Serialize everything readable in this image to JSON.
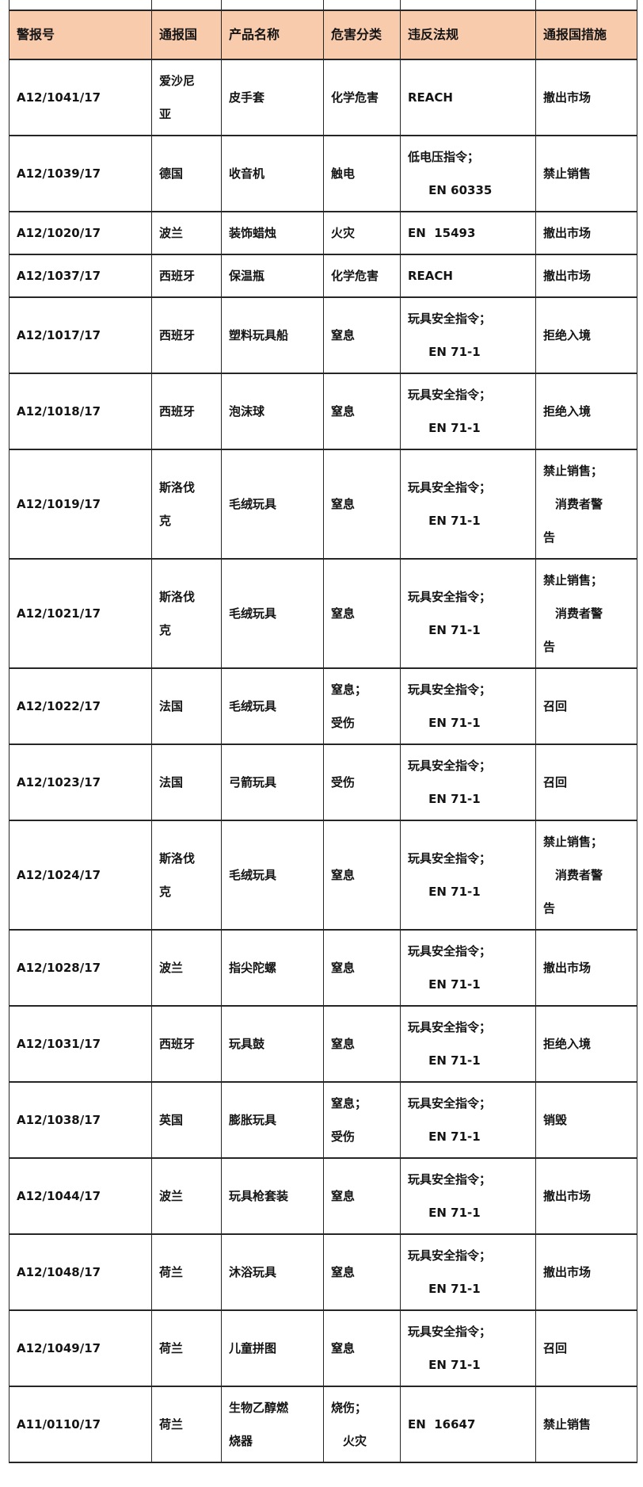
{
  "colors": {
    "header_bg": "#F8CBAD",
    "border": "#262626",
    "text": "#141414",
    "page_bg": "#FFFFFF"
  },
  "table": {
    "columns": [
      {
        "key": "alert_no",
        "label": "警报号"
      },
      {
        "key": "country",
        "label": "通报国"
      },
      {
        "key": "product",
        "label": "产品名称"
      },
      {
        "key": "hazard",
        "label": "危害分类"
      },
      {
        "key": "regulation",
        "label": "违反法规"
      },
      {
        "key": "measure",
        "label": "通报国措施"
      }
    ],
    "rows": [
      {
        "alert_no": [
          "A12/1041/17"
        ],
        "country": [
          "爱沙尼",
          "亚"
        ],
        "product": [
          "皮手套"
        ],
        "hazard": [
          "化学危害"
        ],
        "regulation": [
          "REACH"
        ],
        "measure": [
          "撤出市场"
        ]
      },
      {
        "alert_no": [
          "A12/1039/17"
        ],
        "country": [
          "德国"
        ],
        "product": [
          "收音机"
        ],
        "hazard": [
          "触电"
        ],
        "regulation": [
          "低电压指令；",
          "     EN 60335"
        ],
        "measure": [
          "禁止销售"
        ]
      },
      {
        "alert_no": [
          "A12/1020/17"
        ],
        "country": [
          "波兰"
        ],
        "product": [
          "装饰蜡烛"
        ],
        "hazard": [
          "火灾"
        ],
        "regulation": [
          "EN  15493"
        ],
        "measure": [
          "撤出市场"
        ]
      },
      {
        "alert_no": [
          "A12/1037/17"
        ],
        "country": [
          "西班牙"
        ],
        "product": [
          "保温瓶"
        ],
        "hazard": [
          "化学危害"
        ],
        "regulation": [
          "REACH"
        ],
        "measure": [
          "撤出市场"
        ]
      },
      {
        "alert_no": [
          "A12/1017/17"
        ],
        "country": [
          "西班牙"
        ],
        "product": [
          "塑料玩具船"
        ],
        "hazard": [
          "窒息"
        ],
        "regulation": [
          "玩具安全指令；",
          "     EN 71-1"
        ],
        "measure": [
          "拒绝入境"
        ]
      },
      {
        "alert_no": [
          "A12/1018/17"
        ],
        "country": [
          "西班牙"
        ],
        "product": [
          "泡沫球"
        ],
        "hazard": [
          "窒息"
        ],
        "regulation": [
          "玩具安全指令；",
          "     EN 71-1"
        ],
        "measure": [
          "拒绝入境"
        ]
      },
      {
        "alert_no": [
          "A12/1019/17"
        ],
        "country": [
          "斯洛伐",
          "克"
        ],
        "product": [
          "毛绒玩具"
        ],
        "hazard": [
          "窒息"
        ],
        "regulation": [
          "玩具安全指令；",
          "     EN 71-1"
        ],
        "measure": [
          "禁止销售；",
          "　消费者警",
          "告"
        ]
      },
      {
        "alert_no": [
          "A12/1021/17"
        ],
        "country": [
          "斯洛伐",
          "克"
        ],
        "product": [
          "毛绒玩具"
        ],
        "hazard": [
          "窒息"
        ],
        "regulation": [
          "玩具安全指令；",
          "     EN 71-1"
        ],
        "measure": [
          "禁止销售；",
          "　消费者警",
          "告"
        ]
      },
      {
        "alert_no": [
          "A12/1022/17"
        ],
        "country": [
          "法国"
        ],
        "product": [
          "毛绒玩具"
        ],
        "hazard": [
          "窒息；",
          "受伤"
        ],
        "regulation": [
          "玩具安全指令；",
          "     EN 71-1"
        ],
        "measure": [
          "召回"
        ]
      },
      {
        "alert_no": [
          "A12/1023/17"
        ],
        "country": [
          "法国"
        ],
        "product": [
          "弓箭玩具"
        ],
        "hazard": [
          "受伤"
        ],
        "regulation": [
          "玩具安全指令；",
          "     EN 71-1"
        ],
        "measure": [
          "召回"
        ]
      },
      {
        "alert_no": [
          "A12/1024/17"
        ],
        "country": [
          "斯洛伐",
          "克"
        ],
        "product": [
          "毛绒玩具"
        ],
        "hazard": [
          "窒息"
        ],
        "regulation": [
          "玩具安全指令；",
          "     EN 71-1"
        ],
        "measure": [
          "禁止销售；",
          "　消费者警",
          "告"
        ]
      },
      {
        "alert_no": [
          "A12/1028/17"
        ],
        "country": [
          "波兰"
        ],
        "product": [
          "指尖陀螺"
        ],
        "hazard": [
          "窒息"
        ],
        "regulation": [
          "玩具安全指令；",
          "     EN 71-1"
        ],
        "measure": [
          "撤出市场"
        ]
      },
      {
        "alert_no": [
          "A12/1031/17"
        ],
        "country": [
          "西班牙"
        ],
        "product": [
          "玩具鼓"
        ],
        "hazard": [
          "窒息"
        ],
        "regulation": [
          "玩具安全指令；",
          "     EN 71-1"
        ],
        "measure": [
          "拒绝入境"
        ]
      },
      {
        "alert_no": [
          "A12/1038/17"
        ],
        "country": [
          "英国"
        ],
        "product": [
          "膨胀玩具"
        ],
        "hazard": [
          "窒息；",
          "受伤"
        ],
        "regulation": [
          "玩具安全指令；",
          "     EN 71-1"
        ],
        "measure": [
          "销毁"
        ]
      },
      {
        "alert_no": [
          "A12/1044/17"
        ],
        "country": [
          "波兰"
        ],
        "product": [
          "玩具枪套装"
        ],
        "hazard": [
          "窒息"
        ],
        "regulation": [
          "玩具安全指令；",
          "     EN 71-1"
        ],
        "measure": [
          "撤出市场"
        ]
      },
      {
        "alert_no": [
          "A12/1048/17"
        ],
        "country": [
          "荷兰"
        ],
        "product": [
          "沐浴玩具"
        ],
        "hazard": [
          "窒息"
        ],
        "regulation": [
          "玩具安全指令；",
          "     EN 71-1"
        ],
        "measure": [
          "撤出市场"
        ]
      },
      {
        "alert_no": [
          "A12/1049/17"
        ],
        "country": [
          "荷兰"
        ],
        "product": [
          "儿童拼图"
        ],
        "hazard": [
          "窒息"
        ],
        "regulation": [
          "玩具安全指令；",
          "     EN 71-1"
        ],
        "measure": [
          "召回"
        ]
      },
      {
        "alert_no": [
          "A11/0110/17"
        ],
        "country": [
          "荷兰"
        ],
        "product": [
          "生物乙醇燃",
          "烧器"
        ],
        "hazard": [
          "烧伤；",
          "　火灾"
        ],
        "regulation": [
          "EN  16647"
        ],
        "measure": [
          "禁止销售"
        ]
      }
    ]
  }
}
